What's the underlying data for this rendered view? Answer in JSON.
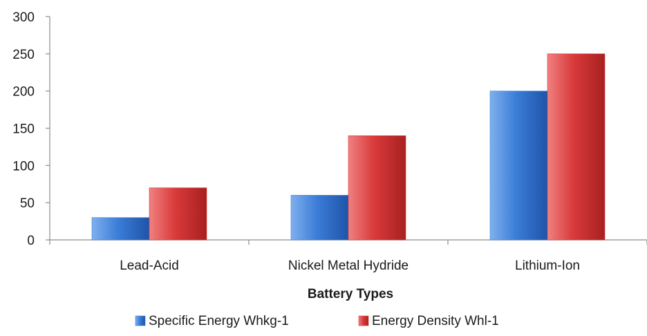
{
  "chart_data": {
    "type": "bar",
    "categories": [
      "Lead-Acid",
      "Nickel Metal Hydride",
      "Lithium-Ion"
    ],
    "series": [
      {
        "name": "Specific Energy Whkg-1",
        "values": [
          30,
          60,
          200
        ],
        "color": "#3b7dd8"
      },
      {
        "name": "Energy Density Whl-1",
        "values": [
          70,
          140,
          250
        ],
        "color": "#d93a3a"
      }
    ],
    "title": "",
    "xlabel": "Battery Types",
    "ylabel": "",
    "ylim": [
      0,
      300
    ],
    "yticks": [
      0,
      50,
      100,
      150,
      200,
      250,
      300
    ],
    "grid": false,
    "legend": "bottom"
  }
}
